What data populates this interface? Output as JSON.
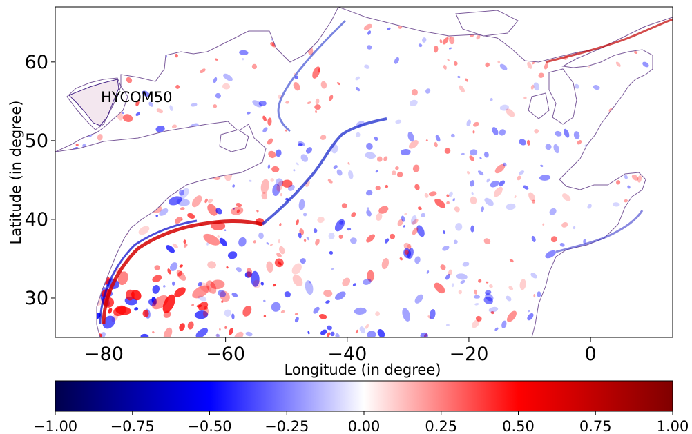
{
  "map": {
    "annotation": "HYCOM50",
    "xlabel": "Longitude (in degree)",
    "ylabel": "Latitude (in degree)",
    "lon_range": [
      -88,
      13.5
    ],
    "lat_range": [
      25,
      67
    ],
    "x_ticks": [
      {
        "value": -80,
        "label": "−80"
      },
      {
        "value": -60,
        "label": "−60"
      },
      {
        "value": -40,
        "label": "−40"
      },
      {
        "value": -20,
        "label": "−20"
      },
      {
        "value": 0,
        "label": "0"
      }
    ],
    "y_ticks": [
      {
        "value": 30,
        "label": "30"
      },
      {
        "value": 40,
        "label": "40"
      },
      {
        "value": 50,
        "label": "50"
      },
      {
        "value": 60,
        "label": "60"
      }
    ],
    "colors": {
      "ocean_zero": "#ffffff",
      "negative": "#0000ff",
      "positive": "#ff0000",
      "land": "#ffffff"
    }
  },
  "colorbar": {
    "colormap": "seismic",
    "range": [
      -1.0,
      1.0
    ],
    "colors": [
      "#00004c",
      "#0000ff",
      "#ffffff",
      "#ff0000",
      "#800000"
    ],
    "ticks": [
      {
        "value": -1.0,
        "label": "−1.00"
      },
      {
        "value": -0.75,
        "label": "−0.75"
      },
      {
        "value": -0.5,
        "label": "−0.50"
      },
      {
        "value": -0.25,
        "label": "−0.25"
      },
      {
        "value": 0.0,
        "label": "0.00"
      },
      {
        "value": 0.25,
        "label": "0.25"
      },
      {
        "value": 0.5,
        "label": "0.50"
      },
      {
        "value": 0.75,
        "label": "0.75"
      },
      {
        "value": 1.0,
        "label": "1.00"
      }
    ]
  }
}
